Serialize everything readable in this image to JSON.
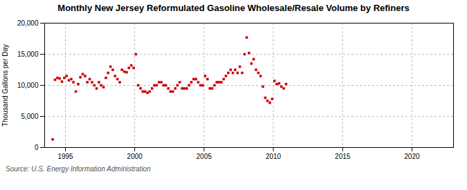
{
  "chart_data": {
    "type": "scatter",
    "title": "Monthly New Jersey Reformulated Gasoline Wholesale/Resale Volume by Refiners",
    "ylabel": "Thousand Gallons per Day",
    "caption": "Source: U.S. Energy Information Administration",
    "color": "#cc0000",
    "marker": "square",
    "grid": true,
    "xlim": [
      1993.5,
      2023
    ],
    "ylim": [
      0,
      20000
    ],
    "xticks": [
      1995,
      2000,
      2005,
      2010,
      2015,
      2020
    ],
    "yticks": [
      0,
      {
        "value": 5000,
        "label": "5,000"
      },
      {
        "value": 10000,
        "label": "10,000"
      },
      {
        "value": 15000,
        "label": "15,000"
      },
      {
        "value": 20000,
        "label": "20,000"
      }
    ],
    "x": [
      1994.08,
      1994.25,
      1994.42,
      1994.58,
      1994.75,
      1994.92,
      1995.08,
      1995.25,
      1995.42,
      1995.58,
      1995.75,
      1995.92,
      1996.08,
      1996.25,
      1996.42,
      1996.58,
      1996.75,
      1996.92,
      1997.08,
      1997.25,
      1997.42,
      1997.58,
      1997.75,
      1997.92,
      1998.08,
      1998.25,
      1998.42,
      1998.58,
      1998.75,
      1998.92,
      1999.08,
      1999.25,
      1999.42,
      1999.58,
      1999.75,
      1999.92,
      2000.08,
      2000.25,
      2000.42,
      2000.58,
      2000.75,
      2000.92,
      2001.08,
      2001.25,
      2001.42,
      2001.58,
      2001.75,
      2001.92,
      2002.08,
      2002.25,
      2002.42,
      2002.58,
      2002.75,
      2002.92,
      2003.08,
      2003.25,
      2003.42,
      2003.58,
      2003.75,
      2003.92,
      2004.08,
      2004.25,
      2004.42,
      2004.58,
      2004.75,
      2004.92,
      2005.08,
      2005.25,
      2005.42,
      2005.58,
      2005.75,
      2005.92,
      2006.08,
      2006.25,
      2006.42,
      2006.58,
      2006.75,
      2006.92,
      2007.08,
      2007.25,
      2007.42,
      2007.58,
      2007.75,
      2007.92,
      2008.08,
      2008.25,
      2008.42,
      2008.58,
      2008.75,
      2008.92,
      2009.08,
      2009.25,
      2009.42,
      2009.58,
      2009.75,
      2009.92,
      2010.08,
      2010.25,
      2010.42,
      2010.58,
      2010.75,
      2010.92
    ],
    "values": [
      1300,
      10900,
      11200,
      11100,
      10600,
      11200,
      11500,
      10800,
      11000,
      10500,
      9000,
      10200,
      11300,
      11800,
      11500,
      10500,
      11000,
      10500,
      10000,
      9500,
      10500,
      10000,
      9700,
      11200,
      12000,
      13000,
      12500,
      11500,
      11000,
      10500,
      12500,
      12200,
      12100,
      12800,
      13200,
      12800,
      15000,
      10000,
      9500,
      9000,
      9000,
      8800,
      9000,
      9500,
      10000,
      10000,
      10500,
      10500,
      10000,
      10000,
      9500,
      9000,
      9000,
      9500,
      10000,
      10500,
      9500,
      9500,
      9500,
      10000,
      10500,
      11000,
      11000,
      10500,
      10000,
      10000,
      11500,
      11000,
      9500,
      9500,
      10000,
      10500,
      10500,
      10500,
      11000,
      11500,
      12000,
      12500,
      12000,
      12500,
      12000,
      13000,
      12000,
      15000,
      17700,
      15200,
      13500,
      14200,
      12500,
      12000,
      11500,
      9800,
      8000,
      7500,
      7200,
      7800,
      10700,
      10200,
      10300,
      9800,
      9500,
      10200
    ]
  }
}
